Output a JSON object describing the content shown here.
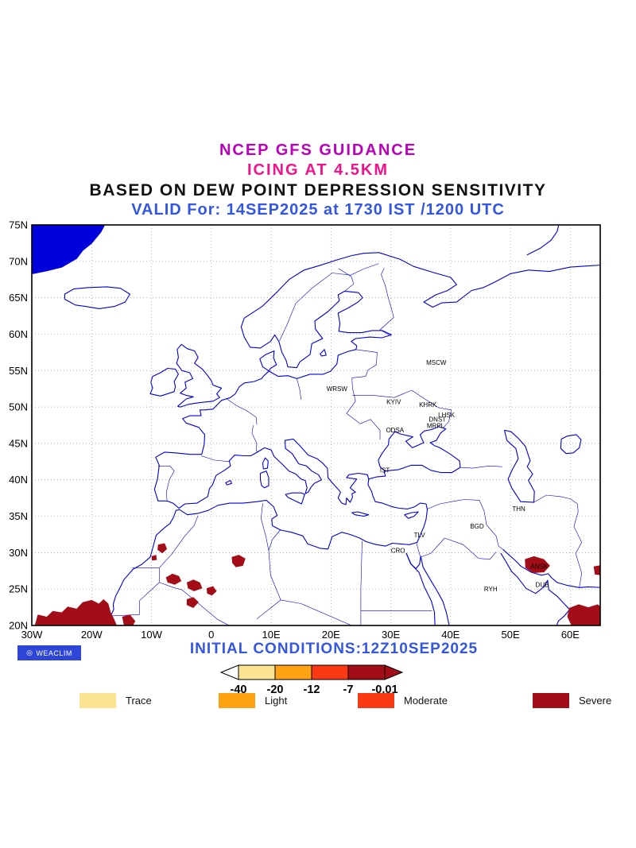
{
  "header": {
    "line1": "NCEP GFS GUIDANCE",
    "line2": "ICING AT 4.5KM",
    "line3": "BASED ON DEW POINT DEPRESSION SENSITIVITY",
    "line4": "VALID For: 14SEP2025 at 1730 IST /1200 UTC"
  },
  "map": {
    "lat_ticks": [
      {
        "v": 75,
        "label": "75N"
      },
      {
        "v": 70,
        "label": "70N"
      },
      {
        "v": 65,
        "label": "65N"
      },
      {
        "v": 60,
        "label": "60N"
      },
      {
        "v": 55,
        "label": "55N"
      },
      {
        "v": 50,
        "label": "50N"
      },
      {
        "v": 45,
        "label": "45N"
      },
      {
        "v": 40,
        "label": "40N"
      },
      {
        "v": 35,
        "label": "35N"
      },
      {
        "v": 30,
        "label": "30N"
      },
      {
        "v": 25,
        "label": "25N"
      },
      {
        "v": 20,
        "label": "20N"
      }
    ],
    "lon_ticks": [
      {
        "v": -30,
        "label": "30W"
      },
      {
        "v": -20,
        "label": "20W"
      },
      {
        "v": -10,
        "label": "10W"
      },
      {
        "v": 0,
        "label": "0"
      },
      {
        "v": 10,
        "label": "10E"
      },
      {
        "v": 20,
        "label": "20E"
      },
      {
        "v": 30,
        "label": "30E"
      },
      {
        "v": 40,
        "label": "40E"
      },
      {
        "v": 50,
        "label": "50E"
      },
      {
        "v": 60,
        "label": "60E"
      }
    ],
    "cities": [
      {
        "label": "MSCW",
        "lon": 37.6,
        "lat": 55.8
      },
      {
        "label": "WRSW",
        "lon": 21.0,
        "lat": 52.2
      },
      {
        "label": "KYIV",
        "lon": 30.5,
        "lat": 50.4
      },
      {
        "label": "KHRK",
        "lon": 36.2,
        "lat": 50.0
      },
      {
        "label": "LHSK",
        "lon": 39.3,
        "lat": 48.6
      },
      {
        "label": "DNST",
        "lon": 37.8,
        "lat": 48.0
      },
      {
        "label": "MRPL",
        "lon": 37.5,
        "lat": 47.1
      },
      {
        "label": "ODSA",
        "lon": 30.7,
        "lat": 46.5
      },
      {
        "label": "IST",
        "lon": 29.0,
        "lat": 41.0
      },
      {
        "label": "THN",
        "lon": 51.4,
        "lat": 35.7
      },
      {
        "label": "BGD",
        "lon": 44.4,
        "lat": 33.3
      },
      {
        "label": "TLV",
        "lon": 34.8,
        "lat": 32.1
      },
      {
        "label": "CRO",
        "lon": 31.2,
        "lat": 30.0
      },
      {
        "label": "RYH",
        "lon": 46.7,
        "lat": 24.7
      },
      {
        "label": "ANSK",
        "lon": 54.8,
        "lat": 27.8
      },
      {
        "label": "DUB",
        "lon": 55.3,
        "lat": 25.3
      }
    ],
    "icing_regions": [
      [
        [
          -29.5,
          20
        ],
        [
          -29,
          21.5
        ],
        [
          -27.5,
          21.2
        ],
        [
          -26.5,
          22
        ],
        [
          -25,
          21.8
        ],
        [
          -24,
          22.6
        ],
        [
          -22.5,
          22.3
        ],
        [
          -21.5,
          23.2
        ],
        [
          -20,
          23.5
        ],
        [
          -18.8,
          23
        ],
        [
          -18,
          23.6
        ],
        [
          -17.2,
          23
        ],
        [
          -16.8,
          21.8
        ],
        [
          -16.2,
          20.8
        ],
        [
          -15.8,
          20
        ],
        [
          -20,
          19.5
        ],
        [
          -29.5,
          19.5
        ]
      ],
      [
        [
          -14.9,
          21.2
        ],
        [
          -13.6,
          21.5
        ],
        [
          -12.7,
          20.6
        ],
        [
          -13.2,
          19.8
        ],
        [
          -14.6,
          20
        ]
      ],
      [
        [
          -8.9,
          31.1
        ],
        [
          -7.8,
          31.3
        ],
        [
          -7.4,
          30.5
        ],
        [
          -8.2,
          29.9
        ],
        [
          -9,
          30.4
        ]
      ],
      [
        [
          -10,
          29.5
        ],
        [
          -9.2,
          29.7
        ],
        [
          -9.1,
          29
        ],
        [
          -9.9,
          28.9
        ]
      ],
      [
        [
          -7.6,
          26.6
        ],
        [
          -6.5,
          27.1
        ],
        [
          -5.4,
          26.8
        ],
        [
          -5,
          26.1
        ],
        [
          -6.1,
          25.6
        ],
        [
          -7.3,
          25.9
        ]
      ],
      [
        [
          -4.1,
          25.9
        ],
        [
          -3,
          26.3
        ],
        [
          -1.9,
          25.9
        ],
        [
          -1.5,
          25.1
        ],
        [
          -2.9,
          24.7
        ],
        [
          -3.9,
          25.1
        ]
      ],
      [
        [
          -0.8,
          25.1
        ],
        [
          0.3,
          25.4
        ],
        [
          0.9,
          24.7
        ],
        [
          0.1,
          24.1
        ],
        [
          -0.7,
          24.4
        ]
      ],
      [
        [
          3.4,
          29.4
        ],
        [
          4.6,
          29.7
        ],
        [
          5.7,
          29.2
        ],
        [
          5.3,
          28.2
        ],
        [
          4.1,
          28
        ],
        [
          3.5,
          28.6
        ]
      ],
      [
        [
          -4.1,
          23.6
        ],
        [
          -3,
          23.9
        ],
        [
          -2.1,
          23.2
        ],
        [
          -3,
          22.4
        ],
        [
          -4.1,
          22.8
        ]
      ],
      [
        [
          52.4,
          29.1
        ],
        [
          53.9,
          29.5
        ],
        [
          55.6,
          29.1
        ],
        [
          56.6,
          28.2
        ],
        [
          55.6,
          27.3
        ],
        [
          53.8,
          27.2
        ],
        [
          52.5,
          27.9
        ]
      ],
      [
        [
          63.9,
          28.1
        ],
        [
          65.3,
          28.3
        ],
        [
          65.3,
          26.9
        ],
        [
          64.1,
          27
        ]
      ],
      [
        [
          59.8,
          22.4
        ],
        [
          61.4,
          22.9
        ],
        [
          63,
          22.5
        ],
        [
          64.6,
          22.9
        ],
        [
          65.5,
          22.2
        ],
        [
          65.5,
          19.8
        ],
        [
          60.3,
          19.8
        ],
        [
          59.5,
          21.2
        ]
      ]
    ]
  },
  "footer": {
    "logo": "WEACLIM",
    "initial_conditions": "INITIAL CONDITIONS:12Z10SEP2025"
  },
  "colorbar": {
    "ticks": [
      "-40",
      "-20",
      "-12",
      "-7",
      "-0.01"
    ],
    "segments": [
      "#FBE491",
      "#FFA214",
      "#F93814",
      "#A30D17"
    ],
    "left_arrow": "#FFFFFF",
    "right_arrow": "#A30D17"
  },
  "legend": [
    {
      "label": "Trace",
      "color": "#FBE491"
    },
    {
      "label": "Light",
      "color": "#FFA214"
    },
    {
      "label": "Moderate",
      "color": "#F93814"
    },
    {
      "label": "Severe",
      "color": "#A30D17"
    }
  ],
  "colors": {
    "title_magenta": "#bb00bb",
    "title_pink": "#f0148c",
    "header_blue": "#3356e3",
    "coast_blue": "#0000dd",
    "grid_gray": "#9a9a9a",
    "severe": "#A30D17"
  }
}
